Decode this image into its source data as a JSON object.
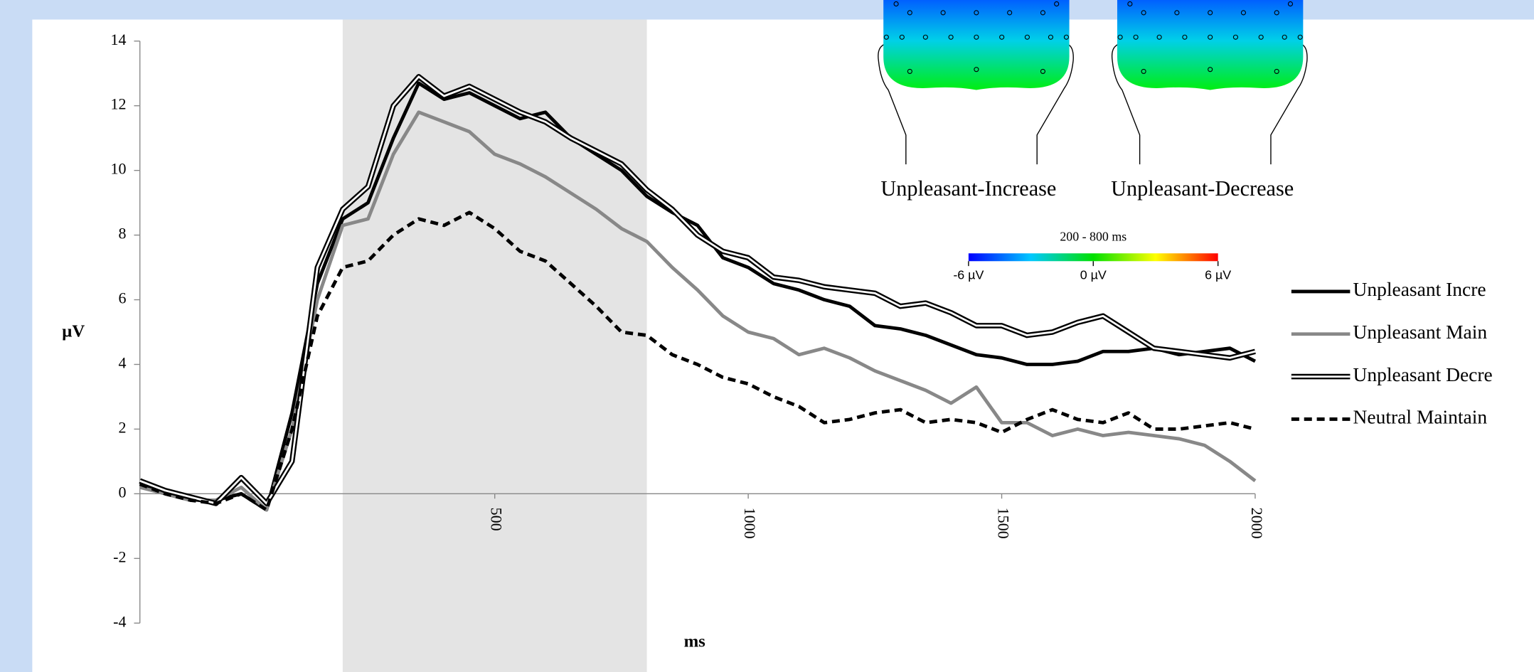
{
  "chart_data": {
    "type": "line",
    "x_label": "ms",
    "y_label": "µV",
    "x": [
      -200,
      -150,
      -100,
      -50,
      0,
      50,
      100,
      150,
      200,
      250,
      300,
      350,
      400,
      450,
      500,
      550,
      600,
      650,
      700,
      750,
      800,
      850,
      900,
      950,
      1000,
      1050,
      1100,
      1150,
      1200,
      1250,
      1300,
      1350,
      1400,
      1450,
      1500,
      1550,
      1600,
      1650,
      1700,
      1750,
      1800,
      1850,
      1900,
      1950,
      2000
    ],
    "xlim": [
      -200,
      2000
    ],
    "xticks": [
      500,
      1000,
      1500,
      2000
    ],
    "ylim": [
      -4,
      14
    ],
    "yticks": [
      -4,
      -2,
      0,
      2,
      4,
      6,
      8,
      10,
      12,
      14
    ],
    "highlight": [
      200,
      800
    ],
    "series": [
      {
        "name": "Unpleasant Incre",
        "color": "#000000",
        "style": "solid",
        "values": [
          0.3,
          0,
          -0.2,
          -0.2,
          0,
          -0.5,
          2.5,
          6.5,
          8.5,
          9,
          11,
          12.7,
          12.2,
          12.4,
          12,
          11.6,
          11.8,
          11,
          10.5,
          10,
          9.2,
          8.7,
          8.3,
          7.3,
          7,
          6.5,
          6.3,
          6,
          5.8,
          5.2,
          5.1,
          4.9,
          4.6,
          4.3,
          4.2,
          4.0,
          4.0,
          4.1,
          4.4,
          4.4,
          4.5,
          4.3,
          4.4,
          4.5,
          4.1
        ]
      },
      {
        "name": "Unpleasant Main",
        "color": "#888888",
        "style": "solid",
        "values": [
          0.2,
          0,
          -0.2,
          -0.2,
          0.2,
          -0.5,
          2,
          6,
          8.3,
          8.5,
          10.5,
          11.8,
          11.5,
          11.2,
          10.5,
          10.2,
          9.8,
          9.3,
          8.8,
          8.2,
          7.8,
          7,
          6.3,
          5.5,
          5,
          4.8,
          4.3,
          4.5,
          4.2,
          3.8,
          3.5,
          3.2,
          2.8,
          3.3,
          2.2,
          2.2,
          1.8,
          2,
          1.8,
          1.9,
          1.8,
          1.7,
          1.5,
          1,
          0.4
        ]
      },
      {
        "name": "Unpleasant Decre",
        "color": "#000000",
        "style": "double",
        "values": [
          0.4,
          0.1,
          -0.1,
          -0.3,
          0.5,
          -0.3,
          1,
          7,
          8.8,
          9.5,
          12,
          12.9,
          12.3,
          12.6,
          12.2,
          11.8,
          11.5,
          11,
          10.6,
          10.2,
          9.4,
          8.8,
          8,
          7.5,
          7.3,
          6.7,
          6.6,
          6.4,
          6.3,
          6.2,
          5.8,
          5.9,
          5.6,
          5.2,
          5.2,
          4.9,
          5,
          5.3,
          5.5,
          5,
          4.5,
          4.4,
          4.3,
          4.2,
          4.4
        ]
      },
      {
        "name": "Neutral Maintain",
        "color": "#000000",
        "style": "dashed",
        "values": [
          0.3,
          0,
          -0.2,
          -0.3,
          0,
          -0.5,
          2,
          5.5,
          7,
          7.2,
          8,
          8.5,
          8.3,
          8.7,
          8.2,
          7.5,
          7.2,
          6.5,
          5.8,
          5,
          4.9,
          4.3,
          4,
          3.6,
          3.4,
          3,
          2.7,
          2.2,
          2.3,
          2.5,
          2.6,
          2.2,
          2.3,
          2.2,
          1.9,
          2.3,
          2.6,
          2.3,
          2.2,
          2.5,
          2,
          2,
          2.1,
          2.2,
          2
        ]
      }
    ],
    "topomaps": [
      "Unpleasant-Increase",
      "Unpleasant-Decrease"
    ],
    "colorbar": {
      "title": "200 - 800 ms",
      "lim": [
        -6,
        6
      ],
      "ticks": [
        {
          "value": -6,
          "label": "-6 µV"
        },
        {
          "value": 0,
          "label": "0 µV"
        },
        {
          "value": 6,
          "label": "6 µV"
        }
      ]
    }
  }
}
